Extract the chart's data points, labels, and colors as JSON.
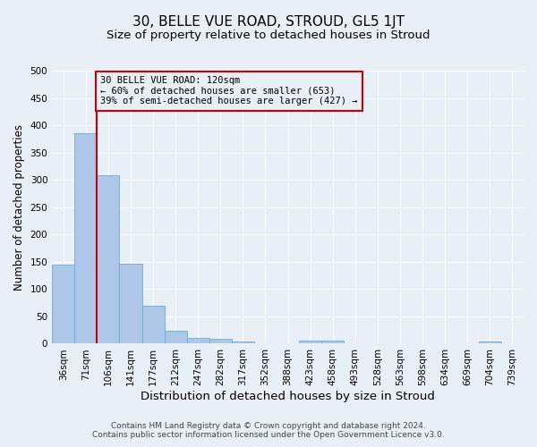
{
  "title": "30, BELLE VUE ROAD, STROUD, GL5 1JT",
  "subtitle": "Size of property relative to detached houses in Stroud",
  "xlabel": "Distribution of detached houses by size in Stroud",
  "ylabel": "Number of detached properties",
  "footnote1": "Contains HM Land Registry data © Crown copyright and database right 2024.",
  "footnote2": "Contains public sector information licensed under the Open Government Licence v3.0.",
  "bar_labels": [
    "36sqm",
    "71sqm",
    "106sqm",
    "141sqm",
    "177sqm",
    "212sqm",
    "247sqm",
    "282sqm",
    "317sqm",
    "352sqm",
    "388sqm",
    "423sqm",
    "458sqm",
    "493sqm",
    "528sqm",
    "563sqm",
    "598sqm",
    "634sqm",
    "669sqm",
    "704sqm",
    "739sqm"
  ],
  "bar_values": [
    144,
    385,
    309,
    147,
    70,
    23,
    10,
    9,
    4,
    0,
    0,
    5,
    5,
    0,
    0,
    0,
    0,
    0,
    0,
    4,
    0
  ],
  "bar_color": "#aec6e8",
  "bar_edgecolor": "#6aaed6",
  "background_color": "#e8eff7",
  "grid_color": "#ffffff",
  "red_line_color": "#cc0000",
  "annotation_line1": "30 BELLE VUE ROAD: 120sqm",
  "annotation_line2": "← 60% of detached houses are smaller (653)",
  "annotation_line3": "39% of semi-detached houses are larger (427) →",
  "annotation_box_edgecolor": "#cc0000",
  "ylim": [
    0,
    500
  ],
  "yticks": [
    0,
    50,
    100,
    150,
    200,
    250,
    300,
    350,
    400,
    450,
    500
  ],
  "title_fontsize": 11,
  "subtitle_fontsize": 9.5,
  "xlabel_fontsize": 9.5,
  "ylabel_fontsize": 8.5,
  "tick_fontsize": 7.5,
  "annotation_fontsize": 7.5,
  "footnote_fontsize": 6.5
}
